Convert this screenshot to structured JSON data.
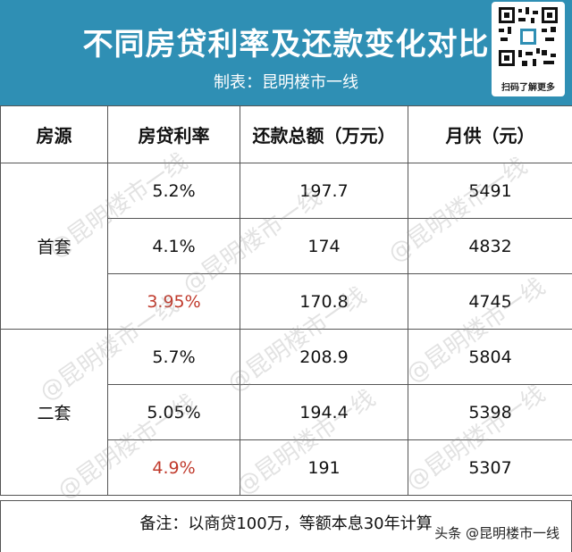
{
  "header": {
    "title": "不同房贷利率及还款变化对比",
    "subtitle": "制表：昆明楼市一线",
    "qr_caption": "扫码了解更多",
    "background_color": "#2f8fb4"
  },
  "table": {
    "columns": [
      "房源",
      "房贷利率",
      "还款总额（万元）",
      "月供（元）"
    ],
    "groups": [
      {
        "label": "首套",
        "rows": [
          {
            "rate": "5.2%",
            "total": "197.7",
            "monthly": "5491",
            "highlight": false
          },
          {
            "rate": "4.1%",
            "total": "174",
            "monthly": "4832",
            "highlight": false
          },
          {
            "rate": "3.95%",
            "total": "170.8",
            "monthly": "4745",
            "highlight": true
          }
        ]
      },
      {
        "label": "二套",
        "rows": [
          {
            "rate": "5.7%",
            "total": "208.9",
            "monthly": "5804",
            "highlight": false
          },
          {
            "rate": "5.05%",
            "total": "194.4",
            "monthly": "5398",
            "highlight": false
          },
          {
            "rate": "4.9%",
            "total": "191",
            "monthly": "5307",
            "highlight": true
          }
        ]
      }
    ],
    "highlight_color": "#c0392b"
  },
  "footnote": "备注：以商贷100万，等额本息30年计算",
  "credit": "头条 @昆明楼市一线",
  "watermark_text": "@昆明楼市一线"
}
